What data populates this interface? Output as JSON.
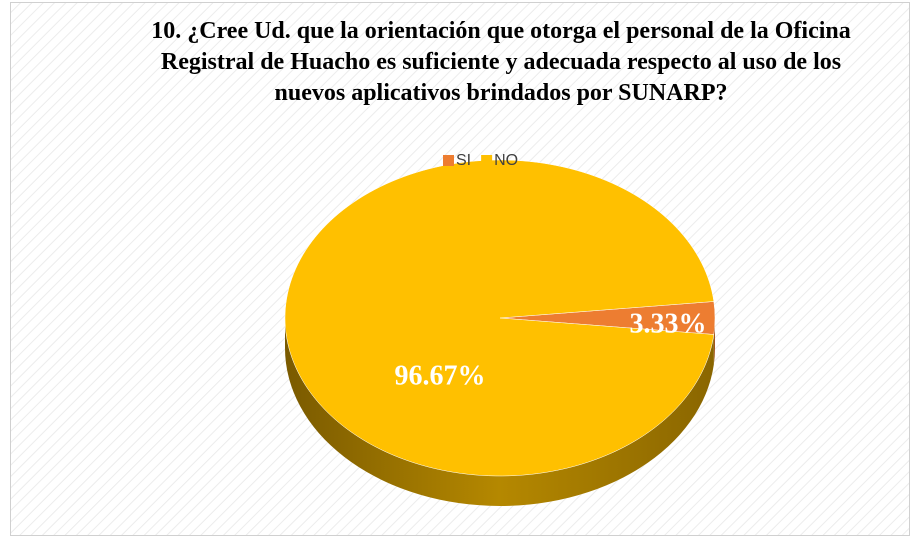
{
  "chart_data": {
    "type": "pie",
    "title": "10. ¿Cree Ud. que la orientación que otorga el personal de la Oficina Registral de Huacho es suficiente y adecuada respecto al uso de los nuevos aplicativos brindados por SUNARP?",
    "categories": [
      "SI",
      "NO"
    ],
    "values": [
      3.33,
      96.67
    ],
    "value_labels": [
      "3.33%",
      "96.67%"
    ],
    "colors": [
      "#ed7d31",
      "#ffc000"
    ],
    "legend": "top"
  }
}
